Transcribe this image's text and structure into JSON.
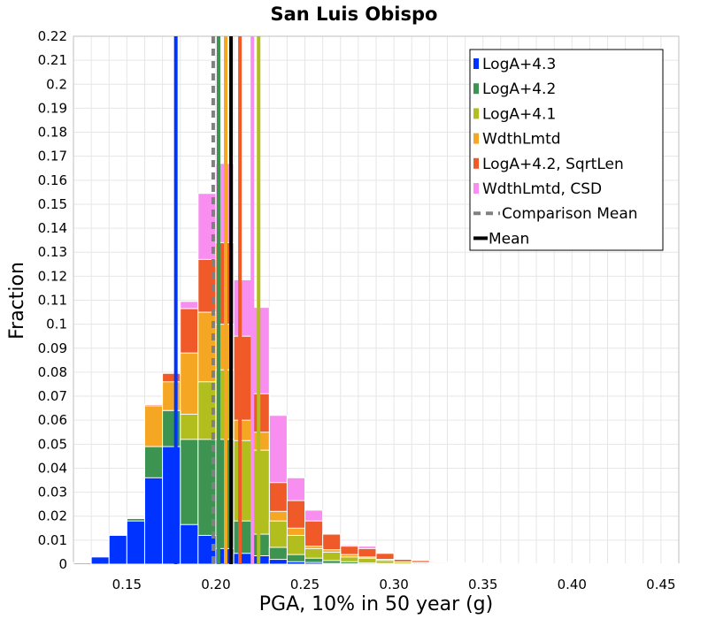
{
  "chart_data": {
    "type": "bar",
    "title": "San Luis Obispo",
    "xlabel": "PGA, 10% in 50 year (g)",
    "ylabel": "Fraction",
    "xlim": [
      0.12,
      0.46
    ],
    "ylim": [
      0,
      0.22
    ],
    "xticks": [
      0.15,
      0.2,
      0.25,
      0.3,
      0.35,
      0.4,
      0.45
    ],
    "xtick_labels": [
      "0.15",
      "0.20",
      "0.25",
      "0.30",
      "0.35",
      "0.40",
      "0.45"
    ],
    "yticks": [
      0,
      0.01,
      0.02,
      0.03,
      0.04,
      0.05,
      0.06,
      0.07,
      0.08,
      0.09,
      0.1,
      0.11,
      0.12,
      0.13,
      0.14,
      0.15,
      0.16,
      0.17,
      0.18,
      0.19,
      0.2,
      0.21,
      0.22
    ],
    "ytick_labels": [
      "0",
      "0.01",
      "0.02",
      "0.03",
      "0.04",
      "0.05",
      "0.06",
      "0.07",
      "0.08",
      "0.09",
      "0.1",
      "0.11",
      "0.12",
      "0.13",
      "0.14",
      "0.15",
      "0.16",
      "0.17",
      "0.18",
      "0.19",
      "0.2",
      "0.21",
      "0.22"
    ],
    "grid": true,
    "legend_position": "top-right",
    "bin_width": 0.01,
    "bins": [
      0.125,
      0.135,
      0.145,
      0.155,
      0.165,
      0.175,
      0.185,
      0.195,
      0.205,
      0.215,
      0.225,
      0.235,
      0.245,
      0.255,
      0.265,
      0.275,
      0.285,
      0.295,
      0.305,
      0.315,
      0.325,
      0.335,
      0.345,
      0.355,
      0.365,
      0.375,
      0.385,
      0.395,
      0.405,
      0.415,
      0.425,
      0.435,
      0.445,
      0.455
    ],
    "series": [
      {
        "name": "LogA+4.3",
        "color": "#0033ff",
        "values": [
          0.0005,
          0.003,
          0.012,
          0.018,
          0.036,
          0.049,
          0.0165,
          0.012,
          0.0065,
          0.0045,
          0.0035,
          0.002,
          0.001,
          0.0007,
          0.0003,
          0.0002,
          0.0001,
          0.0001,
          0,
          0,
          0,
          0,
          0,
          0,
          0,
          0,
          0,
          0,
          0,
          0,
          0,
          0,
          0,
          0
        ]
      },
      {
        "name": "LogA+4.2",
        "color": "#3d9450",
        "values": [
          0.0005,
          0.003,
          0.012,
          0.019,
          0.049,
          0.064,
          0.052,
          0.052,
          0.052,
          0.018,
          0.0125,
          0.007,
          0.004,
          0.0025,
          0.0015,
          0.001,
          0.0005,
          0.0003,
          0.0001,
          0.0001,
          0,
          0,
          0,
          0,
          0,
          0,
          0,
          0,
          0,
          0,
          0,
          0,
          0,
          0
        ]
      },
      {
        "name": "LogA+4.1",
        "color": "#b2be1e",
        "values": [
          0.0005,
          0.003,
          0.012,
          0.019,
          0.049,
          0.064,
          0.0625,
          0.076,
          0.081,
          0.0515,
          0.0475,
          0.018,
          0.012,
          0.0065,
          0.005,
          0.003,
          0.0025,
          0.0015,
          0.0008,
          0.0005,
          0.0003,
          0.0002,
          0.0001,
          0.0001,
          0.0001,
          0.0001,
          0.0001,
          0.0001,
          0.0001,
          0.0001,
          0.0001,
          0.0001,
          0.0001,
          0.0001
        ]
      },
      {
        "name": "WdthLmtd",
        "color": "#f5a623",
        "values": [
          0.0005,
          0.003,
          0.012,
          0.019,
          0.066,
          0.076,
          0.088,
          0.105,
          0.1,
          0.06,
          0.055,
          0.022,
          0.015,
          0.0075,
          0.006,
          0.004,
          0.003,
          0.002,
          0.001,
          0.0007,
          0.0005,
          0.0003,
          0.0002,
          0.0001,
          0.0001,
          0.0001,
          0.0001,
          0.0001,
          0.0001,
          0.0001,
          0.0001,
          0.0001,
          0.0001,
          0.0001
        ]
      },
      {
        "name": "LogA+4.2, SqrtLen",
        "color": "#f05a28",
        "values": [
          0.0005,
          0.003,
          0.012,
          0.019,
          0.0665,
          0.0795,
          0.1065,
          0.127,
          0.134,
          0.095,
          0.071,
          0.034,
          0.0265,
          0.018,
          0.0125,
          0.0075,
          0.0065,
          0.0045,
          0.002,
          0.0015,
          0.0008,
          0.0005,
          0.0003,
          0.0002,
          0.0002,
          0.0002,
          0.0001,
          0.0001,
          0.0001,
          0.0001,
          0.0001,
          0.0001,
          0.0001,
          0.0001
        ]
      },
      {
        "name": "WdthLmtd, CSD",
        "color": "#f78ef0",
        "values": [
          0.0005,
          0.003,
          0.012,
          0.019,
          0.0665,
          0.0795,
          0.1095,
          0.1545,
          0.167,
          0.1185,
          0.107,
          0.062,
          0.036,
          0.0225,
          0.0125,
          0.008,
          0.0075,
          0.0045,
          0.0015,
          0.0015,
          0.0008,
          0.0005,
          0.0003,
          0.0002,
          0.0002,
          0.0002,
          0.0001,
          0.0001,
          0.0001,
          0.0001,
          0.0001,
          0.0001,
          0.0001,
          0.0001
        ]
      }
    ],
    "mean_lines": [
      {
        "name": "LogA+4.3",
        "x": 0.1775,
        "color": "#0033ff",
        "dash": false
      },
      {
        "name": "LogA+4.2",
        "x": 0.2015,
        "color": "#3d9450",
        "dash": false
      },
      {
        "name": "LogA+4.1",
        "x": 0.224,
        "color": "#b2be1e",
        "dash": false
      },
      {
        "name": "WdthLmtd",
        "x": 0.2055,
        "color": "#f5a623",
        "dash": false
      },
      {
        "name": "LogA+4.2, SqrtLen",
        "x": 0.2135,
        "color": "#f05a28",
        "dash": false
      },
      {
        "name": "WdthLmtd, CSD",
        "x": 0.2205,
        "color": "#f78ef0",
        "dash": false
      },
      {
        "name": "Comparison Mean",
        "x": 0.1985,
        "color": "#808080",
        "dash": true
      },
      {
        "name": "Mean",
        "x": 0.2085,
        "color": "#000000",
        "dash": false
      }
    ],
    "legend": [
      {
        "label": "LogA+4.3",
        "color": "#0033ff",
        "kind": "box"
      },
      {
        "label": "LogA+4.2",
        "color": "#3d9450",
        "kind": "box"
      },
      {
        "label": "LogA+4.1",
        "color": "#b2be1e",
        "kind": "box"
      },
      {
        "label": "WdthLmtd",
        "color": "#f5a623",
        "kind": "box"
      },
      {
        "label": "LogA+4.2, SqrtLen",
        "color": "#f05a28",
        "kind": "box"
      },
      {
        "label": "WdthLmtd, CSD",
        "color": "#f78ef0",
        "kind": "box"
      },
      {
        "label": "Comparison Mean",
        "color": "#808080",
        "kind": "dash"
      },
      {
        "label": "Mean",
        "color": "#000000",
        "kind": "line"
      }
    ]
  }
}
